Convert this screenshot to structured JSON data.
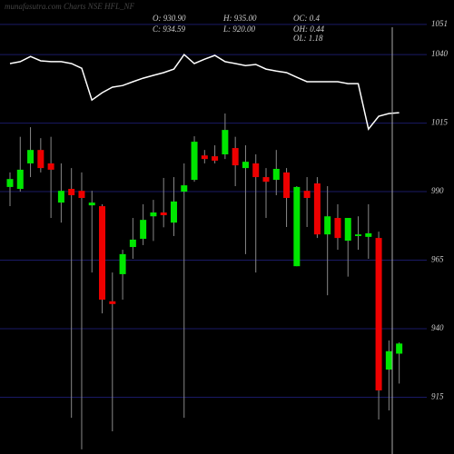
{
  "chart_data": {
    "type": "candlestick",
    "title": "munafasutra.com Charts NSE HFL_NF",
    "info": [
      "O: 930.90",
      "H: 935.00",
      "OC: 0.4",
      "C: 934.59",
      "L: 920.00",
      "OH: 0.44",
      "OL: 1.18"
    ],
    "open": [
      991.7,
      991,
      1000.3,
      1005.2,
      1000.3,
      986,
      991,
      990.3,
      985,
      984.7,
      950,
      959.9,
      969.8,
      972.8,
      981,
      982.4,
      978.7,
      990,
      994.3,
      1003.2,
      1002.9,
      1003.6,
      1005.9,
      998.6,
      1000.3,
      995.3,
      994.3,
      997,
      962.8,
      990.3,
      993,
      974.4,
      980.4,
      972.1,
      973.8,
      973.5,
      973.1,
      925.1,
      930.9
    ],
    "high": [
      997,
      1010,
      1013.5,
      1009.5,
      1010,
      1000.3,
      998.6,
      997,
      990.3,
      985.4,
      960.5,
      968.8,
      980.4,
      985.4,
      987,
      995,
      995.3,
      1000.3,
      1010.2,
      1005.2,
      1006.9,
      1018.5,
      1010,
      1006.9,
      1003.6,
      998.6,
      1005.2,
      998.6,
      992,
      995.3,
      995.3,
      992,
      985.4,
      980.4,
      981,
      985.4,
      975.4,
      935.7,
      935
    ],
    "low": [
      984.7,
      990,
      995.3,
      997,
      980.4,
      978.7,
      907.5,
      896,
      960.5,
      945.6,
      902.6,
      950.6,
      965.5,
      970.5,
      972,
      977,
      973.8,
      907.5,
      993.6,
      1000.3,
      1000.3,
      1001.9,
      992,
      967.2,
      960.5,
      980.4,
      988.7,
      977.1,
      962.8,
      977.1,
      973.1,
      952.2,
      968.8,
      959,
      968.8,
      965.5,
      906.9,
      910.2,
      920
    ],
    "close": [
      994.6,
      998,
      1005.2,
      998.6,
      998,
      990.3,
      988.7,
      987.7,
      986,
      950.6,
      949,
      967.2,
      972.5,
      979.7,
      982.4,
      981.4,
      986.4,
      992.3,
      1008.2,
      1001.9,
      1001.3,
      1012.5,
      999.6,
      1000.9,
      995.3,
      993.6,
      998.3,
      987.7,
      991.7,
      987.7,
      974.4,
      981,
      973.1,
      980.4,
      974.4,
      974.8,
      917.5,
      931.8,
      934.59
    ],
    "overlay": {
      "color": "#ffffff",
      "values": [
        1036.7,
        1037.4,
        1039.3,
        1037.7,
        1037.4,
        1037.4,
        1036.7,
        1035,
        1023.4,
        1026.1,
        1028.1,
        1028.7,
        1030.1,
        1031.4,
        1032.4,
        1033.4,
        1034.7,
        1040,
        1036.7,
        1038.3,
        1039.7,
        1037.4,
        1036.7,
        1036,
        1036.4,
        1034.7,
        1034,
        1033.4,
        1031.7,
        1030.1,
        1030.1,
        1030.1,
        1030.1,
        1029.4,
        1029.4,
        1012.8,
        1017.5,
        1018.5,
        1018.8
      ]
    },
    "up_color": "#00e600",
    "down_color": "#ee0000",
    "wick_color": "#888888",
    "ylim": [
      894.3,
      1059.9
    ],
    "yticks": [
      915,
      940,
      965,
      990,
      1015,
      1040,
      1051
    ],
    "grid": true
  }
}
